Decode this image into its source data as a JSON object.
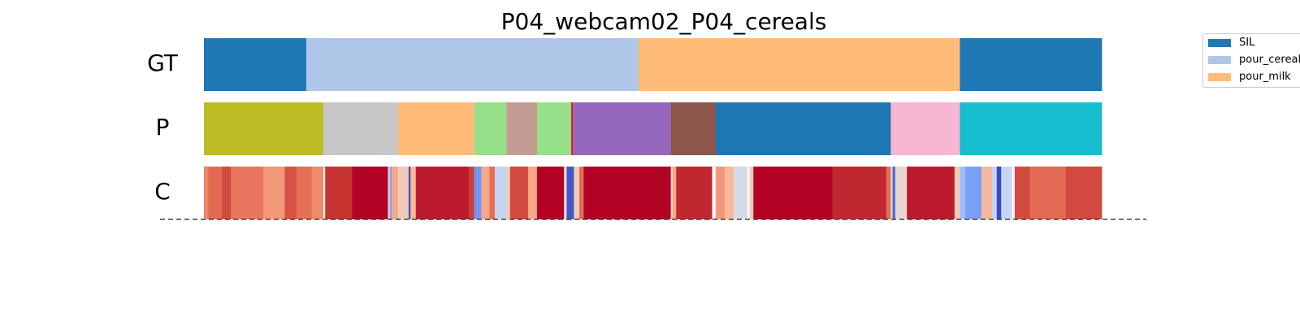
{
  "chart_data": {
    "type": "segmentation",
    "title": "P04_webcam02_P04_cereals",
    "x_range": [
      0,
      1
    ],
    "rows": [
      {
        "label": "GT",
        "segments": [
          {
            "start": 0.0,
            "end": 0.114,
            "label": "SIL",
            "color": "#1f77b4"
          },
          {
            "start": 0.114,
            "end": 0.484,
            "label": "pour_cereals",
            "color": "#aec7e8"
          },
          {
            "start": 0.484,
            "end": 0.842,
            "label": "pour_milk",
            "color": "#ffbb78"
          },
          {
            "start": 0.842,
            "end": 1.0,
            "label": "SIL",
            "color": "#1f77b4"
          }
        ]
      },
      {
        "label": "P",
        "segments": [
          {
            "start": 0.0,
            "end": 0.133,
            "color": "#bcbd22"
          },
          {
            "start": 0.133,
            "end": 0.216,
            "color": "#c7c7c7"
          },
          {
            "start": 0.216,
            "end": 0.301,
            "color": "#ffbb78"
          },
          {
            "start": 0.301,
            "end": 0.337,
            "color": "#98df8a"
          },
          {
            "start": 0.337,
            "end": 0.371,
            "color": "#c49c94"
          },
          {
            "start": 0.371,
            "end": 0.409,
            "color": "#98df8a"
          },
          {
            "start": 0.409,
            "end": 0.411,
            "color": "#d62728"
          },
          {
            "start": 0.411,
            "end": 0.52,
            "color": "#9467bd"
          },
          {
            "start": 0.52,
            "end": 0.57,
            "color": "#8c564b"
          },
          {
            "start": 0.57,
            "end": 0.765,
            "color": "#1f77b4"
          },
          {
            "start": 0.765,
            "end": 0.842,
            "color": "#f7b6d2"
          },
          {
            "start": 0.842,
            "end": 1.0,
            "color": "#17becf"
          }
        ]
      },
      {
        "label": "C",
        "colormap": "coolwarm",
        "segments": [
          {
            "start": 0.0,
            "end": 0.005,
            "color": "#ee8468"
          },
          {
            "start": 0.005,
            "end": 0.02,
            "color": "#e36b54"
          },
          {
            "start": 0.02,
            "end": 0.03,
            "color": "#d24b40"
          },
          {
            "start": 0.03,
            "end": 0.066,
            "color": "#e8765c"
          },
          {
            "start": 0.066,
            "end": 0.09,
            "color": "#f4987a"
          },
          {
            "start": 0.09,
            "end": 0.103,
            "color": "#d65244"
          },
          {
            "start": 0.103,
            "end": 0.12,
            "color": "#e57058"
          },
          {
            "start": 0.12,
            "end": 0.133,
            "color": "#f08a6c"
          },
          {
            "start": 0.133,
            "end": 0.135,
            "color": "#f7f7f7"
          },
          {
            "start": 0.135,
            "end": 0.165,
            "color": "#c63531"
          },
          {
            "start": 0.165,
            "end": 0.205,
            "color": "#b40426"
          },
          {
            "start": 0.205,
            "end": 0.207,
            "color": "#dddcdc"
          },
          {
            "start": 0.207,
            "end": 0.209,
            "color": "#7b9ff9"
          },
          {
            "start": 0.209,
            "end": 0.216,
            "color": "#f7a889"
          },
          {
            "start": 0.216,
            "end": 0.228,
            "color": "#f2cbb7"
          },
          {
            "start": 0.228,
            "end": 0.23,
            "color": "#3b4cc0"
          },
          {
            "start": 0.23,
            "end": 0.236,
            "color": "#f7b89c"
          },
          {
            "start": 0.236,
            "end": 0.295,
            "color": "#bb1b2c"
          },
          {
            "start": 0.295,
            "end": 0.301,
            "color": "#cc403a"
          },
          {
            "start": 0.301,
            "end": 0.309,
            "color": "#7396f5"
          },
          {
            "start": 0.309,
            "end": 0.318,
            "color": "#f7a889"
          },
          {
            "start": 0.318,
            "end": 0.324,
            "color": "#e46e56"
          },
          {
            "start": 0.324,
            "end": 0.337,
            "color": "#c5d6f2"
          },
          {
            "start": 0.337,
            "end": 0.341,
            "color": "#f2cbb7"
          },
          {
            "start": 0.341,
            "end": 0.361,
            "color": "#d1493f"
          },
          {
            "start": 0.361,
            "end": 0.371,
            "color": "#f7a889"
          },
          {
            "start": 0.371,
            "end": 0.401,
            "color": "#b40426"
          },
          {
            "start": 0.401,
            "end": 0.404,
            "color": "#e7d7ce"
          },
          {
            "start": 0.404,
            "end": 0.412,
            "color": "#4358cb"
          },
          {
            "start": 0.412,
            "end": 0.418,
            "color": "#f2cbb7"
          },
          {
            "start": 0.418,
            "end": 0.423,
            "color": "#e36b54"
          },
          {
            "start": 0.423,
            "end": 0.52,
            "color": "#b40426"
          },
          {
            "start": 0.52,
            "end": 0.522,
            "color": "#e7d7ce"
          },
          {
            "start": 0.522,
            "end": 0.526,
            "color": "#f7a889"
          },
          {
            "start": 0.526,
            "end": 0.566,
            "color": "#c0282f"
          },
          {
            "start": 0.566,
            "end": 0.57,
            "color": "#f7f7f7"
          },
          {
            "start": 0.57,
            "end": 0.58,
            "color": "#f4987a"
          },
          {
            "start": 0.58,
            "end": 0.59,
            "color": "#f7b89c"
          },
          {
            "start": 0.59,
            "end": 0.605,
            "color": "#d5dbe5"
          },
          {
            "start": 0.605,
            "end": 0.608,
            "color": "#f7f7f7"
          },
          {
            "start": 0.608,
            "end": 0.612,
            "color": "#f2cbb7"
          },
          {
            "start": 0.612,
            "end": 0.7,
            "color": "#b40426"
          },
          {
            "start": 0.7,
            "end": 0.76,
            "color": "#c0282f"
          },
          {
            "start": 0.76,
            "end": 0.765,
            "color": "#e57058"
          },
          {
            "start": 0.765,
            "end": 0.767,
            "color": "#e7d7ce"
          },
          {
            "start": 0.767,
            "end": 0.77,
            "color": "#4f69d9"
          },
          {
            "start": 0.77,
            "end": 0.783,
            "color": "#e7d7ce"
          },
          {
            "start": 0.783,
            "end": 0.836,
            "color": "#bb1b2c"
          },
          {
            "start": 0.836,
            "end": 0.842,
            "color": "#f2cbb7"
          },
          {
            "start": 0.842,
            "end": 0.848,
            "color": "#9dbdff"
          },
          {
            "start": 0.848,
            "end": 0.866,
            "color": "#7b9ff9"
          },
          {
            "start": 0.866,
            "end": 0.878,
            "color": "#f7b89c"
          },
          {
            "start": 0.878,
            "end": 0.883,
            "color": "#c5d6f2"
          },
          {
            "start": 0.883,
            "end": 0.888,
            "color": "#3b4cc0"
          },
          {
            "start": 0.888,
            "end": 0.9,
            "color": "#c5d6f2"
          },
          {
            "start": 0.9,
            "end": 0.903,
            "color": "#f7f7f7"
          },
          {
            "start": 0.903,
            "end": 0.92,
            "color": "#d24b40"
          },
          {
            "start": 0.92,
            "end": 0.96,
            "color": "#e36b54"
          },
          {
            "start": 0.96,
            "end": 1.0,
            "color": "#d1493f"
          }
        ]
      }
    ],
    "legend": {
      "placement": "outside-right",
      "items": [
        {
          "label": "SIL",
          "color": "#1f77b4"
        },
        {
          "label": "pour_cereals",
          "color": "#aec7e8"
        },
        {
          "label": "pour_milk",
          "color": "#ffbb78"
        }
      ]
    }
  }
}
